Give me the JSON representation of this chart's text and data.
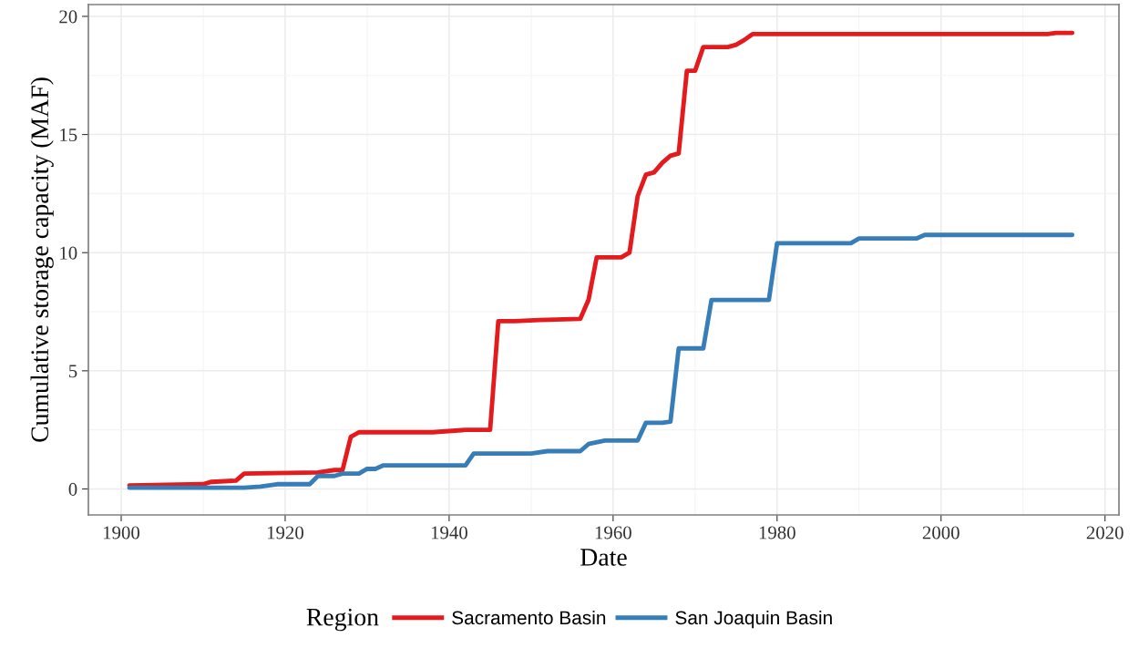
{
  "chart_data": {
    "type": "line",
    "xlabel": "Date",
    "ylabel": "Cumulative storage capacity (MAF)",
    "legend_title": "Region",
    "legend": "bottom",
    "grid": true,
    "line_style": "solid",
    "xlim": [
      1896,
      2021.7
    ],
    "xticks": [
      1900,
      1920,
      1940,
      1960,
      1980,
      2000,
      2020
    ],
    "ylim": [
      -1.1,
      20.5
    ],
    "yticks": [
      0,
      5,
      10,
      15,
      20
    ],
    "series": [
      {
        "name": "Sacramento Basin",
        "color": "#e41a1c",
        "x": [
          1901,
          1910,
          1911,
          1914,
          1915,
          1924,
          1926,
          1927,
          1928,
          1929,
          1938,
          1942,
          1945,
          1946,
          1948,
          1951,
          1956,
          1957,
          1958,
          1961,
          1962,
          1963,
          1964,
          1965,
          1966,
          1967,
          1968,
          1969,
          1970,
          1971,
          1974,
          1975,
          1976,
          1977,
          1990,
          2013,
          2014,
          2016
        ],
        "values": [
          0.15,
          0.2,
          0.3,
          0.35,
          0.65,
          0.7,
          0.8,
          0.8,
          2.2,
          2.4,
          2.4,
          2.5,
          2.5,
          7.1,
          7.1,
          7.15,
          7.2,
          8.0,
          9.8,
          9.8,
          10.0,
          12.4,
          13.3,
          13.4,
          13.8,
          14.1,
          14.2,
          17.7,
          17.7,
          18.7,
          18.7,
          18.8,
          19.0,
          19.25,
          19.25,
          19.25,
          19.3,
          19.3
        ]
      },
      {
        "name": "San Joaquin Basin",
        "color": "#377eb8",
        "x": [
          1901,
          1915,
          1917,
          1919,
          1923,
          1924,
          1926,
          1927,
          1929,
          1930,
          1931,
          1932,
          1942,
          1943,
          1950,
          1952,
          1956,
          1957,
          1959,
          1963,
          1964,
          1966,
          1967,
          1968,
          1971,
          1972,
          1979,
          1980,
          1989,
          1990,
          1997,
          1998,
          2016
        ],
        "values": [
          0.05,
          0.05,
          0.1,
          0.2,
          0.2,
          0.55,
          0.55,
          0.65,
          0.65,
          0.85,
          0.85,
          1.0,
          1.0,
          1.5,
          1.5,
          1.6,
          1.6,
          1.9,
          2.05,
          2.05,
          2.8,
          2.8,
          2.85,
          5.95,
          5.95,
          8.0,
          8.0,
          10.4,
          10.4,
          10.6,
          10.6,
          10.75,
          10.75
        ]
      }
    ]
  }
}
